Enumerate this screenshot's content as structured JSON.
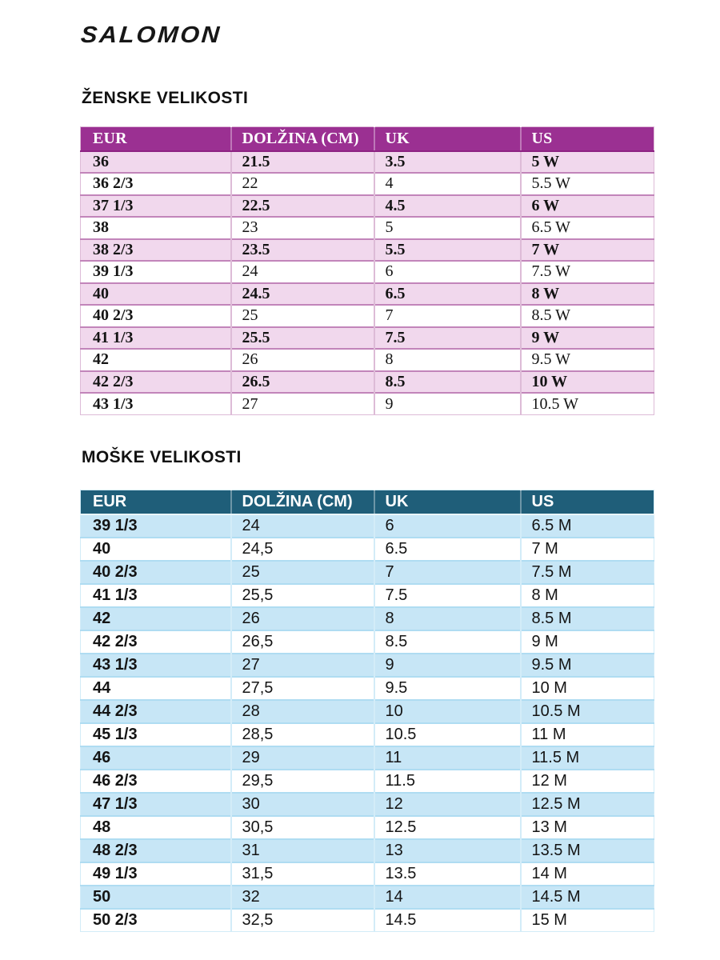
{
  "brand": {
    "logo_text": "SALOMON"
  },
  "sections": {
    "women": {
      "title": "ŽENSKE VELIKOSTI",
      "headers": [
        "EUR",
        "DOLŽINA (CM)",
        "UK",
        "US"
      ],
      "rows": [
        [
          "36",
          "21.5",
          "3.5",
          "5 W"
        ],
        [
          "36 2/3",
          "22",
          "4",
          "5.5 W"
        ],
        [
          "37 1/3",
          "22.5",
          "4.5",
          "6 W"
        ],
        [
          "38",
          "23",
          "5",
          "6.5 W"
        ],
        [
          "38 2/3",
          "23.5",
          "5.5",
          "7 W"
        ],
        [
          "39 1/3",
          "24",
          "6",
          "7.5 W"
        ],
        [
          "40",
          "24.5",
          "6.5",
          "8 W"
        ],
        [
          "40 2/3",
          "25",
          "7",
          "8.5 W"
        ],
        [
          "41 1/3",
          "25.5",
          "7.5",
          "9 W"
        ],
        [
          "42",
          "26",
          "8",
          "9.5 W"
        ],
        [
          "42 2/3",
          "26.5",
          "8.5",
          "10 W"
        ],
        [
          "43 1/3",
          "27",
          "9",
          "10.5 W"
        ]
      ],
      "colors": {
        "header_bg": "#9B3092",
        "header_text": "#FFFFFF",
        "header_border": "#8E2383",
        "row_alt_bg": "#F1D8ED",
        "row_bg": "#FFFFFF",
        "border": "#C285BA",
        "border_v": "#DDBBD7"
      }
    },
    "men": {
      "title": "MOŠKE VELIKOSTI",
      "headers": [
        "EUR",
        "DOLŽINA (CM)",
        "UK",
        "US"
      ],
      "rows": [
        [
          "39 1/3",
          "24",
          "6",
          "6.5 M"
        ],
        [
          "40",
          "24,5",
          "6.5",
          "7 M"
        ],
        [
          "40 2/3",
          "25",
          "7",
          "7.5 M"
        ],
        [
          "41 1/3",
          "25,5",
          "7.5",
          "8 M"
        ],
        [
          "42",
          "26",
          "8",
          "8.5 M"
        ],
        [
          "42 2/3",
          "26,5",
          "8.5",
          "9 M"
        ],
        [
          "43 1/3",
          "27",
          "9",
          "9.5 M"
        ],
        [
          "44",
          "27,5",
          "9.5",
          "10 M"
        ],
        [
          "44 2/3",
          "28",
          "10",
          "10.5 M"
        ],
        [
          "45 1/3",
          "28,5",
          "10.5",
          "11 M"
        ],
        [
          "46",
          "29",
          "11",
          "11.5 M"
        ],
        [
          "46 2/3",
          "29,5",
          "11.5",
          "12 M"
        ],
        [
          "47 1/3",
          "30",
          "12",
          "12.5 M"
        ],
        [
          "48",
          "30,5",
          "12.5",
          "13 M"
        ],
        [
          "48 2/3",
          "31",
          "13",
          "13.5 M"
        ],
        [
          "49 1/3",
          "31,5",
          "13.5",
          "14 M"
        ],
        [
          "50",
          "32",
          "14",
          "14.5 M"
        ],
        [
          "50 2/3",
          "32,5",
          "14.5",
          "15 M"
        ]
      ],
      "colors": {
        "header_bg": "#1F5E79",
        "header_text": "#FFFFFF",
        "header_border": "#E9F5FB",
        "row_alt_bg": "#C7E6F6",
        "row_bg": "#FFFFFF",
        "border": "#AFDCF2",
        "border_v": "#D3ECF8"
      }
    }
  }
}
